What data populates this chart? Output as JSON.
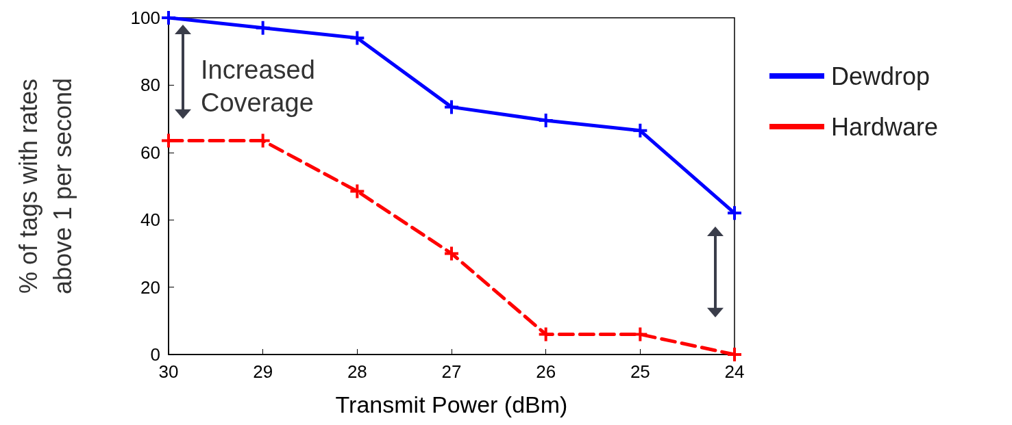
{
  "chart_data": {
    "type": "line",
    "xlabel": "Transmit Power (dBm)",
    "ylabel": "% of tags with rates\nabove 1 per second",
    "x": [
      30,
      29,
      28,
      27,
      26,
      25,
      24
    ],
    "series": [
      {
        "name": "Dewdrop",
        "color": "#0000ff",
        "line_style": "solid",
        "values": [
          100,
          97,
          94,
          73.5,
          69.5,
          66.5,
          42
        ]
      },
      {
        "name": "Hardware",
        "color": "#ff0000",
        "line_style": "dashed",
        "values": [
          63.5,
          63.5,
          48.5,
          30,
          6,
          6,
          0
        ]
      }
    ],
    "xlim": [
      30,
      24
    ],
    "xticks": [
      30,
      29,
      28,
      27,
      26,
      25,
      24
    ],
    "ylim": [
      0,
      100
    ],
    "yticks": [
      0,
      20,
      40,
      60,
      80,
      100
    ],
    "annotations": [
      "Increased\nCoverage"
    ],
    "marker": "cross",
    "grid": false,
    "legend": "right"
  }
}
